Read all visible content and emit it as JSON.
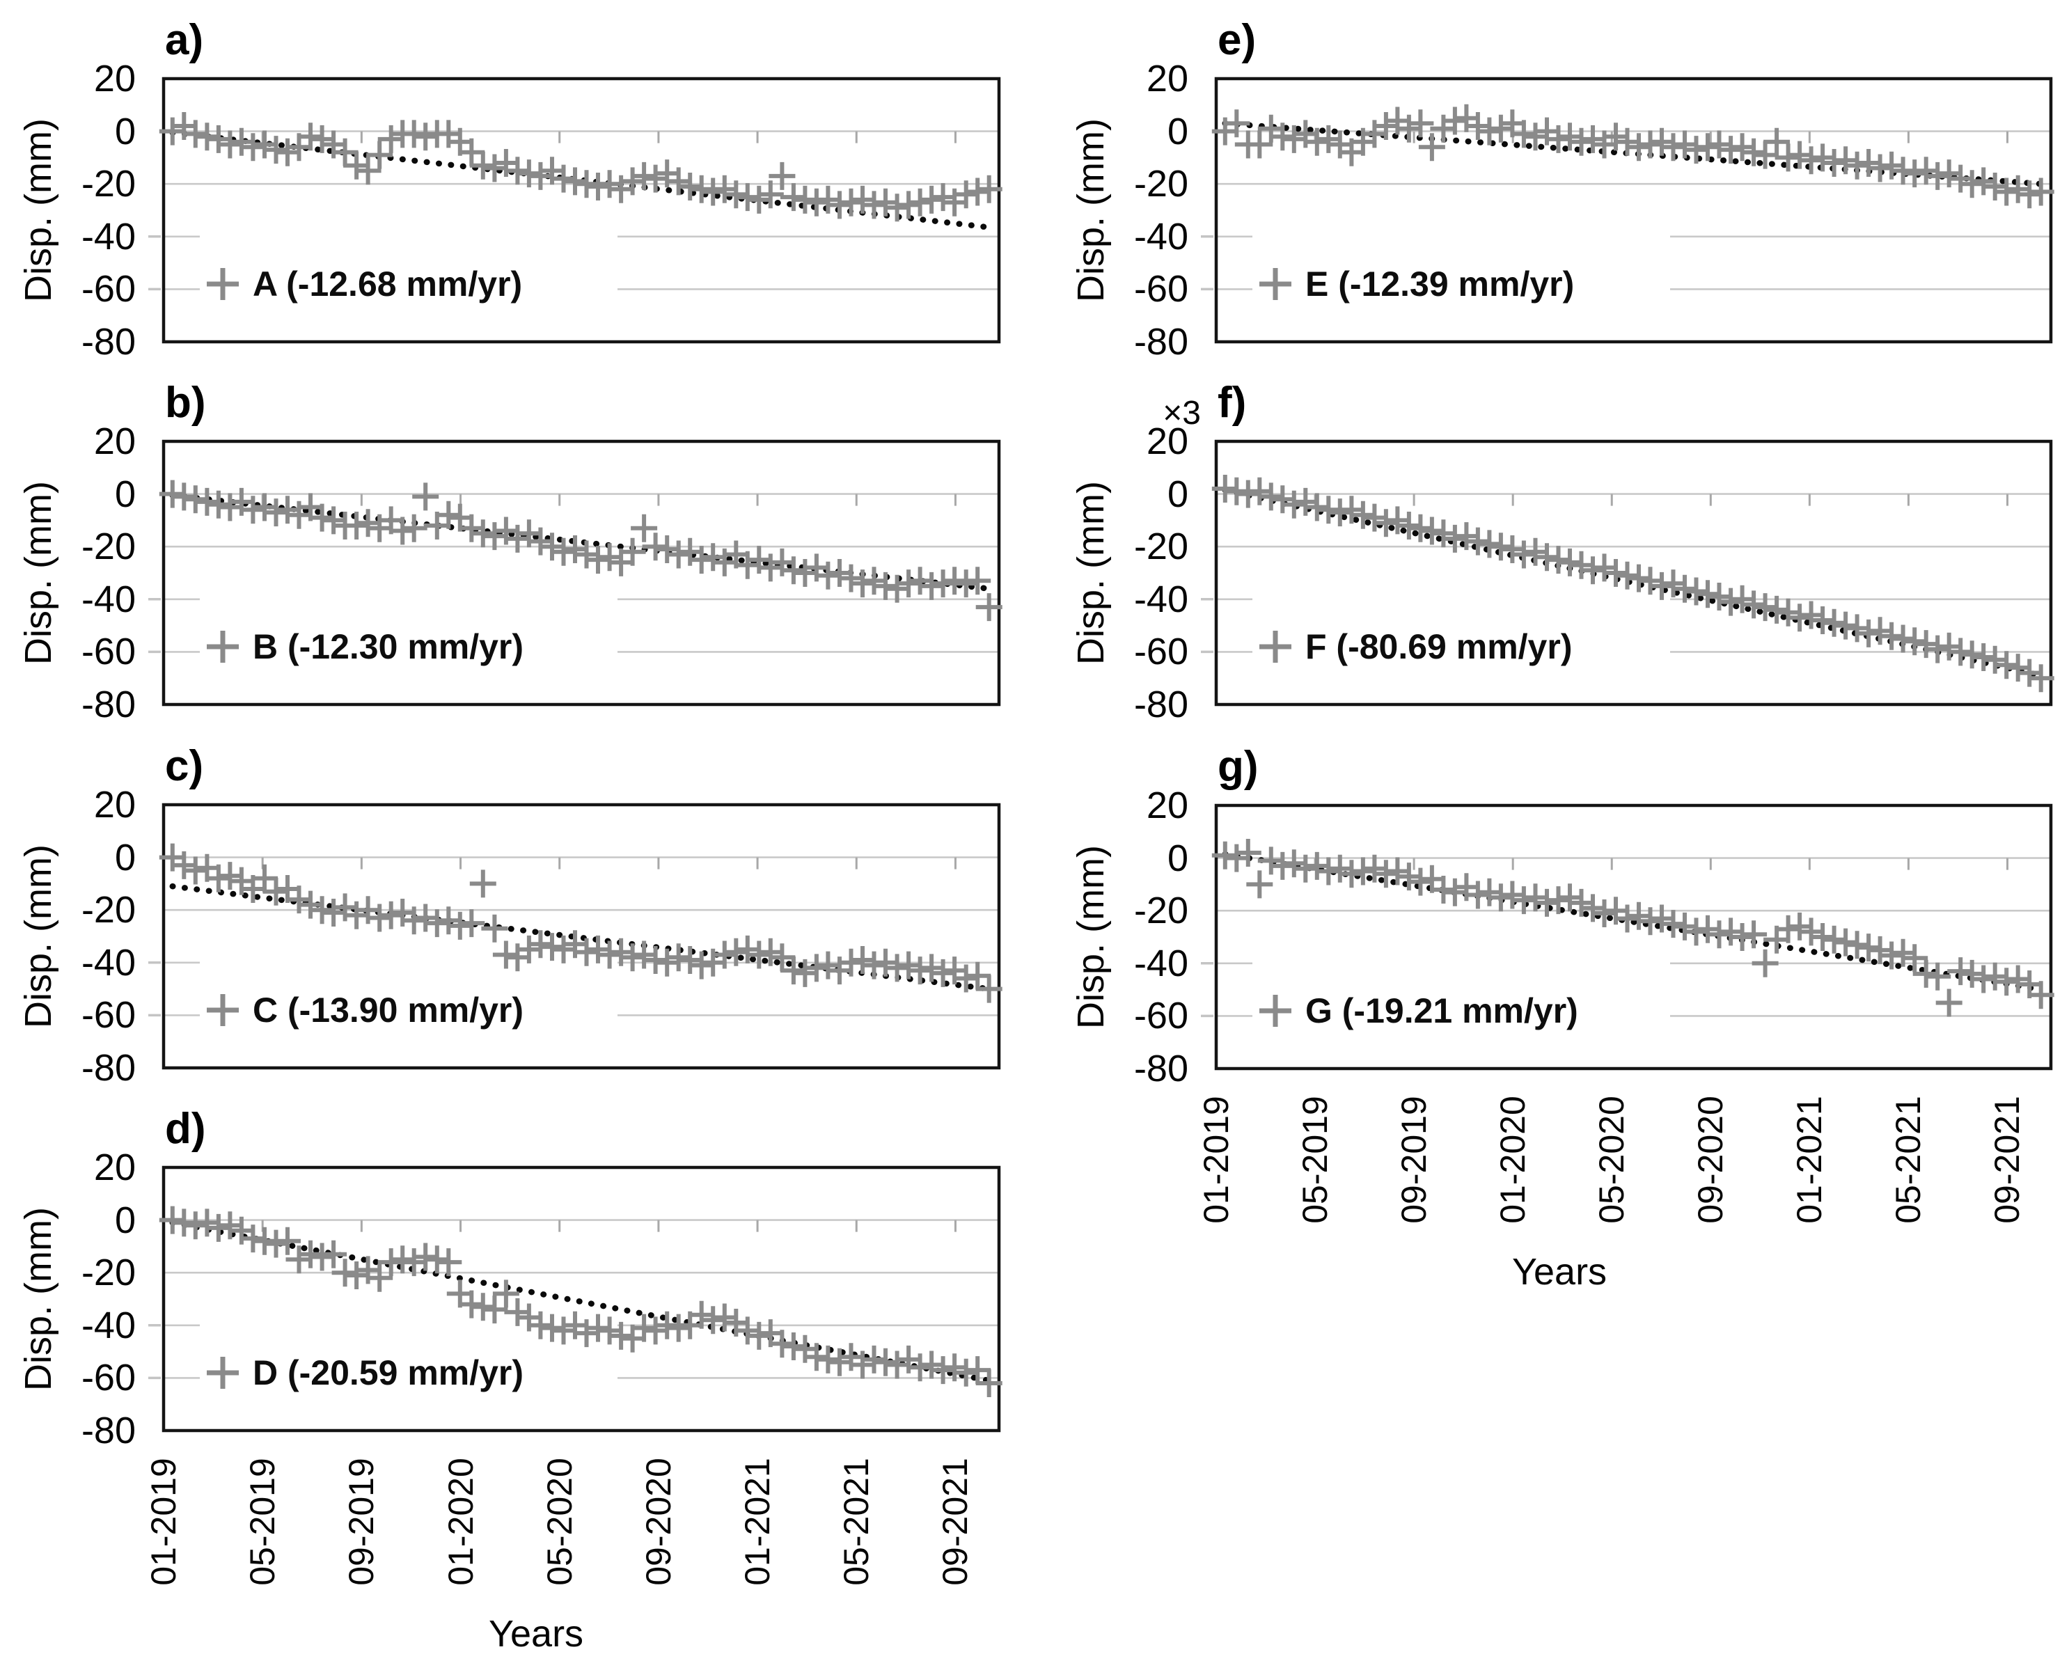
{
  "figure": {
    "ylabel": "Disp. (mm)",
    "xlabel": "Years",
    "y_ticks": [
      "20",
      "0",
      "-20",
      "-40",
      "-60",
      "-80"
    ],
    "x_ticks": [
      "01-2019",
      "05-2019",
      "09-2019",
      "01-2020",
      "05-2020",
      "09-2020",
      "01-2021",
      "05-2021",
      "09-2021"
    ],
    "colors": {
      "marker": "#8a8a8a",
      "trend": "#0a0a0a",
      "grid": "#c9c9c9",
      "axis_tick": "#a8a8a8",
      "outer_tick": "#c4c4c4",
      "box": "#141414",
      "text": "#050505"
    }
  },
  "chart_data": [
    {
      "id": "a",
      "panel_label": "a)",
      "type": "scatter",
      "marker": "plus",
      "series_name": "A",
      "rate": "-12.68 mm/yr",
      "legend": "A (-12.68 mm/yr)",
      "ylim": [
        -80,
        20
      ],
      "xlim": [
        2019.0,
        2021.81
      ],
      "grid": true,
      "legend_position": "lower-left",
      "x_start": 2019.03,
      "x_step": 0.03873,
      "values": [
        0,
        2,
        -1,
        -2,
        -3,
        -5,
        -4,
        -6,
        -5,
        -7,
        -8,
        -6,
        -2,
        -3,
        -5,
        -8,
        -13,
        -15,
        -9,
        -3,
        -1,
        -1,
        -2,
        -1,
        -1,
        -4,
        -8,
        -13,
        -14,
        -12,
        -15,
        -16,
        -17,
        -15,
        -18,
        -19,
        -20,
        -21,
        -20,
        -22,
        -19,
        -17,
        -18,
        -16,
        -19,
        -21,
        -22,
        -23,
        -22,
        -24,
        -25,
        -26,
        -24,
        -17,
        -25,
        -26,
        -27,
        -26,
        -28,
        -27,
        -26,
        -28,
        -27,
        -29,
        -28,
        -27,
        -26,
        -25,
        -27,
        -24,
        -23,
        -22
      ],
      "trend": {
        "x0": 2019.03,
        "y0": -0.5,
        "x1": 2021.78,
        "y1": -36.5
      }
    },
    {
      "id": "b",
      "panel_label": "b)",
      "type": "scatter",
      "marker": "plus",
      "series_name": "B",
      "rate": "-12.30 mm/yr",
      "legend": "B (-12.30 mm/yr)",
      "ylim": [
        -80,
        20
      ],
      "xlim": [
        2019.0,
        2021.81
      ],
      "grid": true,
      "legend_position": "lower-left",
      "x_start": 2019.03,
      "x_step": 0.03873,
      "values": [
        0,
        -1,
        -2,
        -3,
        -4,
        -5,
        -3,
        -6,
        -5,
        -7,
        -6,
        -8,
        -5,
        -9,
        -10,
        -12,
        -12,
        -11,
        -13,
        -10,
        -14,
        -13,
        -1,
        -12,
        -8,
        -9,
        -13,
        -15,
        -16,
        -14,
        -17,
        -15,
        -18,
        -20,
        -22,
        -21,
        -23,
        -25,
        -24,
        -26,
        -22,
        -13,
        -20,
        -21,
        -23,
        -22,
        -25,
        -24,
        -26,
        -23,
        -27,
        -25,
        -28,
        -26,
        -29,
        -30,
        -28,
        -31,
        -30,
        -32,
        -34,
        -33,
        -35,
        -36,
        -34,
        -33,
        -35,
        -34,
        -33,
        -34,
        -33,
        -43
      ],
      "trend": {
        "x0": 2019.03,
        "y0": -0.5,
        "x1": 2021.78,
        "y1": -36.0
      }
    },
    {
      "id": "c",
      "panel_label": "c)",
      "type": "scatter",
      "marker": "plus",
      "series_name": "C",
      "rate": "-13.90 mm/yr",
      "legend": "C (-13.90 mm/yr)",
      "ylim": [
        -80,
        20
      ],
      "xlim": [
        2019.0,
        2021.81
      ],
      "grid": true,
      "legend_position": "lower-left",
      "x_start": 2019.03,
      "x_step": 0.03873,
      "values": [
        0,
        -3,
        -5,
        -4,
        -8,
        -7,
        -9,
        -12,
        -8,
        -13,
        -12,
        -16,
        -18,
        -20,
        -21,
        -19,
        -22,
        -20,
        -23,
        -22,
        -21,
        -24,
        -23,
        -25,
        -24,
        -26,
        -25,
        -10,
        -27,
        -37,
        -38,
        -35,
        -33,
        -34,
        -35,
        -33,
        -36,
        -35,
        -37,
        -36,
        -38,
        -37,
        -39,
        -40,
        -38,
        -39,
        -41,
        -40,
        -37,
        -36,
        -35,
        -37,
        -36,
        -38,
        -43,
        -44,
        -42,
        -41,
        -43,
        -40,
        -39,
        -41,
        -40,
        -42,
        -41,
        -43,
        -42,
        -44,
        -43,
        -46,
        -45,
        -50
      ],
      "trend": {
        "x0": 2019.03,
        "y0": -11.0,
        "x1": 2021.78,
        "y1": -50.0
      }
    },
    {
      "id": "d",
      "panel_label": "d)",
      "type": "scatter",
      "marker": "plus",
      "series_name": "D",
      "rate": "-20.59 mm/yr",
      "legend": "D (-20.59 mm/yr)",
      "ylim": [
        -80,
        20
      ],
      "xlim": [
        2019.0,
        2021.81
      ],
      "grid": true,
      "legend_position": "lower-left",
      "x_start": 2019.03,
      "x_step": 0.03873,
      "values": [
        0,
        -1,
        -2,
        -1,
        -3,
        -2,
        -4,
        -7,
        -8,
        -9,
        -8,
        -15,
        -13,
        -14,
        -13,
        -20,
        -21,
        -19,
        -22,
        -16,
        -15,
        -16,
        -14,
        -15,
        -16,
        -28,
        -32,
        -33,
        -34,
        -28,
        -35,
        -37,
        -40,
        -41,
        -42,
        -40,
        -43,
        -41,
        -42,
        -44,
        -45,
        -41,
        -42,
        -40,
        -41,
        -40,
        -36,
        -38,
        -37,
        -39,
        -42,
        -44,
        -43,
        -47,
        -48,
        -49,
        -52,
        -53,
        -54,
        -52,
        -55,
        -53,
        -54,
        -55,
        -53,
        -56,
        -55,
        -57,
        -56,
        -58,
        -57,
        -62
      ],
      "trend": {
        "x0": 2019.03,
        "y0": -1.0,
        "x1": 2021.78,
        "y1": -61.0
      }
    },
    {
      "id": "e",
      "panel_label": "e)",
      "type": "scatter",
      "marker": "plus",
      "series_name": "E",
      "rate": "-12.39 mm/yr",
      "legend": "E (-12.39 mm/yr)",
      "ylim": [
        -80,
        20
      ],
      "xlim": [
        2019.0,
        2021.81
      ],
      "grid": true,
      "legend_position": "lower-left",
      "x_start": 2019.03,
      "x_step": 0.03873,
      "values": [
        0,
        3,
        -5,
        -5,
        1,
        -2,
        -3,
        -1,
        -4,
        -3,
        -5,
        -8,
        -4,
        -1,
        2,
        4,
        1,
        3,
        -6,
        1,
        4,
        5,
        2,
        0,
        1,
        3,
        -1,
        -2,
        0,
        -3,
        -2,
        -4,
        -3,
        -5,
        -2,
        -4,
        -6,
        -5,
        -4,
        -6,
        -5,
        -7,
        -6,
        -5,
        -7,
        -6,
        -8,
        -9,
        -4,
        -10,
        -9,
        -11,
        -10,
        -12,
        -11,
        -13,
        -12,
        -14,
        -13,
        -15,
        -16,
        -15,
        -17,
        -16,
        -18,
        -20,
        -19,
        -21,
        -23,
        -22,
        -24,
        -23
      ],
      "trend": {
        "x0": 2019.03,
        "y0": 3.0,
        "x1": 2021.78,
        "y1": -20.0
      }
    },
    {
      "id": "f",
      "panel_label": "f)",
      "type": "scatter",
      "marker": "plus",
      "series_name": "F",
      "rate": "-80.69 mm/yr",
      "legend": "F (-80.69 mm/yr)",
      "scale_note": "×3",
      "ylim": [
        -80,
        20
      ],
      "xlim": [
        2019.0,
        2021.81
      ],
      "grid": true,
      "legend_position": "lower-left",
      "x_start": 2019.03,
      "x_step": 0.03873,
      "values": [
        2,
        1,
        0,
        1,
        -1,
        -2,
        -4,
        -3,
        -5,
        -6,
        -7,
        -6,
        -8,
        -9,
        -11,
        -10,
        -12,
        -13,
        -14,
        -15,
        -17,
        -16,
        -18,
        -19,
        -20,
        -21,
        -23,
        -22,
        -24,
        -25,
        -26,
        -27,
        -29,
        -28,
        -30,
        -31,
        -32,
        -33,
        -35,
        -34,
        -36,
        -37,
        -38,
        -39,
        -41,
        -40,
        -42,
        -43,
        -44,
        -45,
        -47,
        -46,
        -48,
        -49,
        -50,
        -51,
        -53,
        -52,
        -54,
        -55,
        -56,
        -57,
        -59,
        -58,
        -60,
        -61,
        -62,
        -63,
        -65,
        -66,
        -68,
        -70
      ],
      "trend": {
        "x0": 2019.03,
        "y0": 1.5,
        "x1": 2021.78,
        "y1": -69.0
      }
    },
    {
      "id": "g",
      "panel_label": "g)",
      "type": "scatter",
      "marker": "plus",
      "series_name": "G",
      "rate": "-19.21 mm/yr",
      "legend": "G (-19.21 mm/yr)",
      "ylim": [
        -80,
        20
      ],
      "xlim": [
        2019.0,
        2021.81
      ],
      "grid": true,
      "legend_position": "lower-left",
      "x_start": 2019.03,
      "x_step": 0.03873,
      "values": [
        1,
        0,
        2,
        -10,
        -1,
        -3,
        -2,
        -4,
        -3,
        -5,
        -4,
        -6,
        -5,
        -4,
        -6,
        -5,
        -7,
        -9,
        -8,
        -12,
        -13,
        -11,
        -14,
        -13,
        -15,
        -14,
        -16,
        -15,
        -17,
        -16,
        -15,
        -17,
        -19,
        -21,
        -20,
        -23,
        -22,
        -24,
        -23,
        -25,
        -26,
        -28,
        -27,
        -29,
        -28,
        -30,
        -29,
        -40,
        -31,
        -27,
        -26,
        -28,
        -30,
        -31,
        -32,
        -33,
        -34,
        -35,
        -37,
        -36,
        -38,
        -44,
        -45,
        -55,
        -43,
        -44,
        -46,
        -45,
        -47,
        -46,
        -48,
        -52
      ],
      "trend": {
        "x0": 2019.03,
        "y0": 1.5,
        "x1": 2021.78,
        "y1": -50.0
      }
    }
  ]
}
